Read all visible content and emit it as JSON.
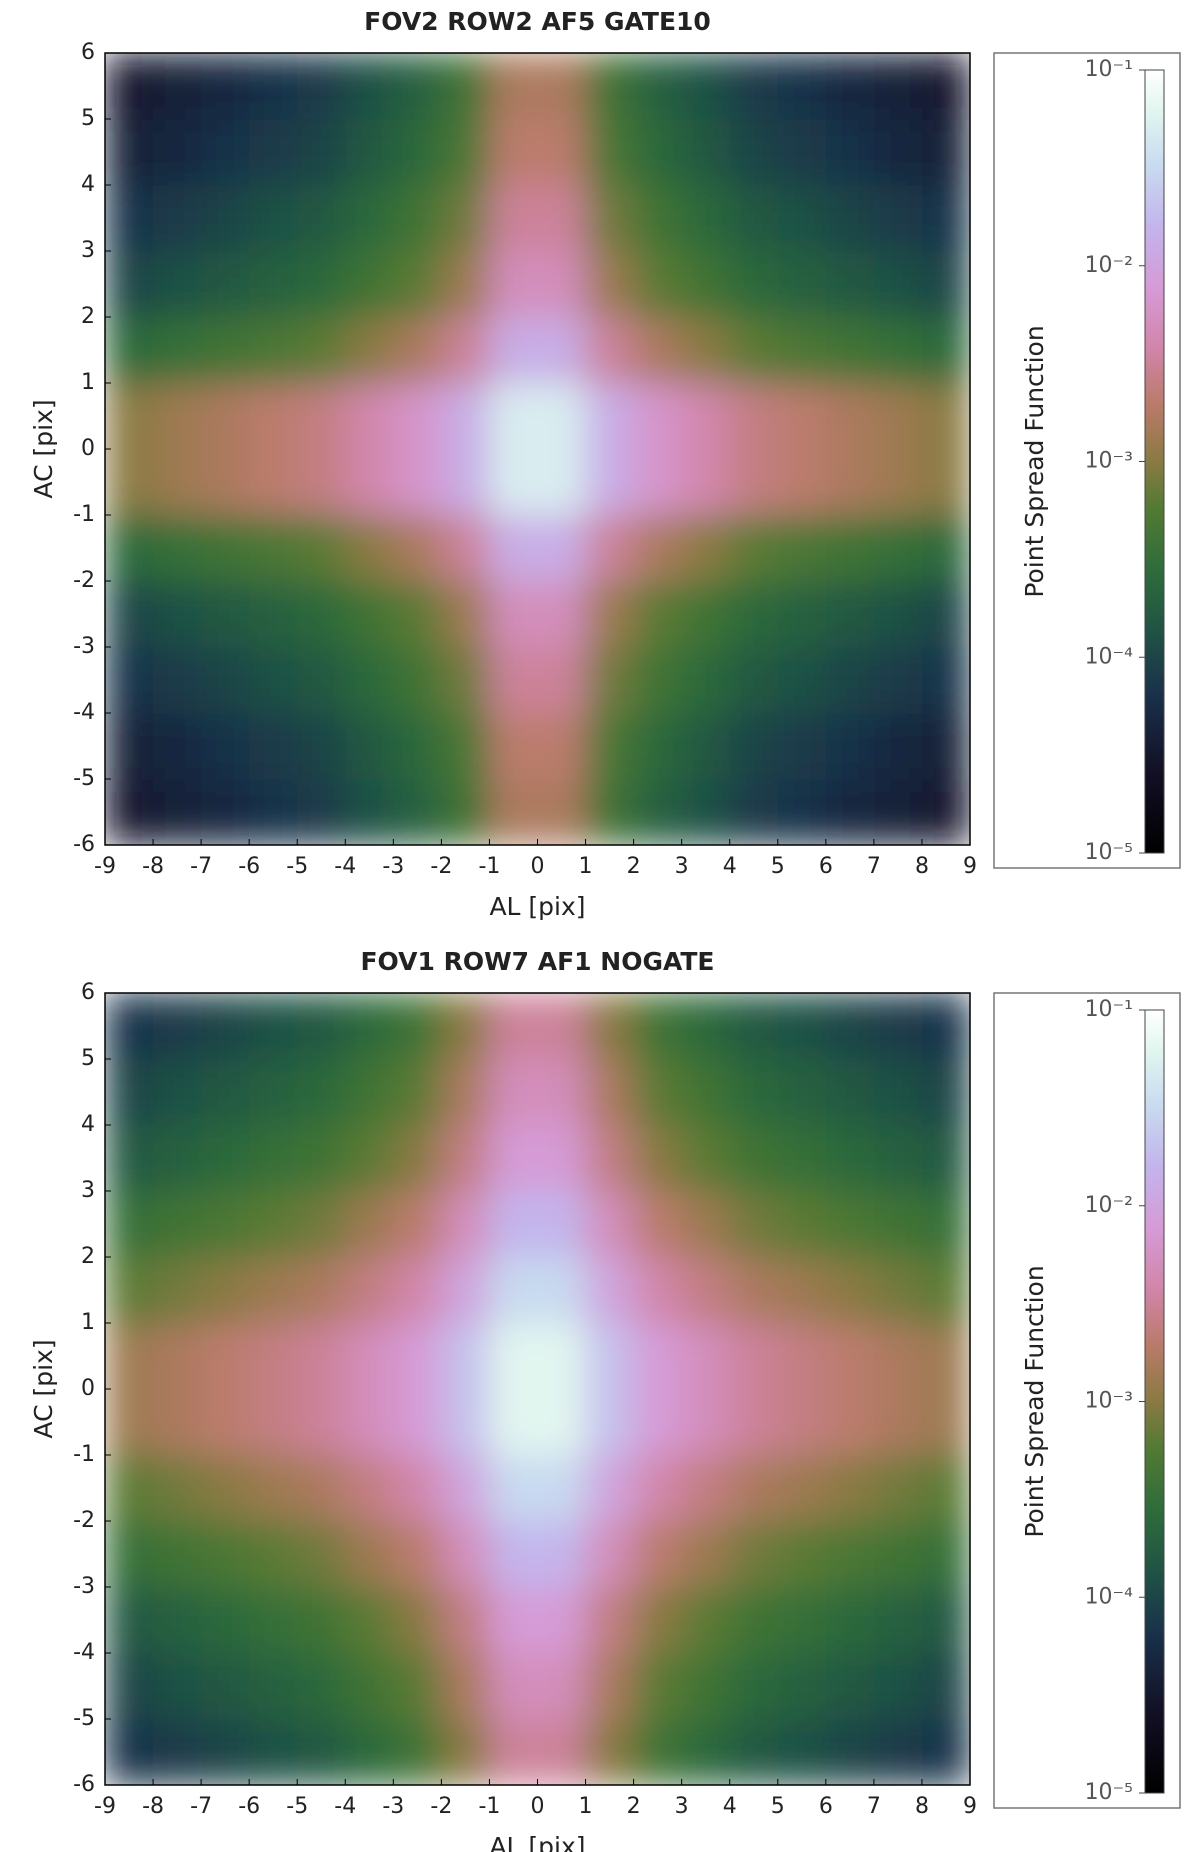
{
  "chart_data": [
    {
      "type": "heatmap",
      "title": "FOV2 ROW2 AF5 GATE10",
      "x_label": "AL [pix]",
      "y_label": "AC [pix]",
      "xlim": [
        -9,
        9
      ],
      "ylim": [
        -6,
        6
      ],
      "xticks": [
        -9,
        -8,
        -7,
        -6,
        -5,
        -4,
        -3,
        -2,
        -1,
        0,
        1,
        2,
        3,
        4,
        5,
        6,
        7,
        8,
        9
      ],
      "yticks": [
        -6,
        -5,
        -4,
        -3,
        -2,
        -1,
        0,
        1,
        2,
        3,
        4,
        5,
        6
      ],
      "x": [
        -8.5,
        -7.5,
        -6.5,
        -5.5,
        -4.5,
        -3.5,
        -2.5,
        -1.5,
        -0.5,
        0.5,
        1.5,
        2.5,
        3.5,
        4.5,
        5.5,
        6.5,
        7.5,
        8.5
      ],
      "y": [
        -5.5,
        -4.5,
        -3.5,
        -2.5,
        -1.5,
        -0.5,
        0.5,
        1.5,
        2.5,
        3.5,
        4.5,
        5.5
      ],
      "z": [
        [
          3.2e-05,
          4e-05,
          5e-05,
          6.3e-05,
          7.9e-05,
          0.00013,
          0.0002,
          0.0004,
          0.0016,
          0.0016,
          0.0004,
          0.0002,
          0.00013,
          7.9e-05,
          6.3e-05,
          5e-05,
          4e-05,
          3.2e-05
        ],
        [
          4e-05,
          5e-05,
          6.3e-05,
          7.9e-05,
          0.0001,
          0.00016,
          0.00025,
          0.0005,
          0.002,
          0.002,
          0.0005,
          0.00025,
          0.00016,
          0.0001,
          7.9e-05,
          6.3e-05,
          5e-05,
          4e-05
        ],
        [
          6.3e-05,
          7.9e-05,
          0.0001,
          0.00013,
          0.00016,
          0.00025,
          0.0004,
          0.00079,
          0.0032,
          0.0032,
          0.00079,
          0.0004,
          0.00025,
          0.00016,
          0.00013,
          0.0001,
          7.9e-05,
          6.3e-05
        ],
        [
          0.0001,
          0.00013,
          0.00016,
          0.0002,
          0.00025,
          0.0004,
          0.00063,
          0.0013,
          0.005,
          0.005,
          0.0013,
          0.00063,
          0.0004,
          0.00025,
          0.0002,
          0.00016,
          0.00013,
          0.0001
        ],
        [
          0.00025,
          0.00032,
          0.0004,
          0.0005,
          0.00063,
          0.001,
          0.0016,
          0.0032,
          0.013,
          0.013,
          0.0032,
          0.0016,
          0.001,
          0.00063,
          0.0005,
          0.0004,
          0.00032,
          0.00025
        ],
        [
          0.001,
          0.0013,
          0.0016,
          0.002,
          0.0025,
          0.004,
          0.0063,
          0.013,
          0.05,
          0.05,
          0.013,
          0.0063,
          0.004,
          0.0025,
          0.002,
          0.0016,
          0.0013,
          0.001
        ],
        [
          0.001,
          0.0013,
          0.0016,
          0.002,
          0.0025,
          0.004,
          0.0063,
          0.013,
          0.05,
          0.05,
          0.013,
          0.0063,
          0.004,
          0.0025,
          0.002,
          0.0016,
          0.0013,
          0.001
        ],
        [
          0.00025,
          0.00032,
          0.0004,
          0.0005,
          0.00063,
          0.001,
          0.0016,
          0.0032,
          0.013,
          0.013,
          0.0032,
          0.0016,
          0.001,
          0.00063,
          0.0005,
          0.0004,
          0.00032,
          0.00025
        ],
        [
          0.0001,
          0.00013,
          0.00016,
          0.0002,
          0.00025,
          0.0004,
          0.00063,
          0.0013,
          0.005,
          0.005,
          0.0013,
          0.00063,
          0.0004,
          0.00025,
          0.0002,
          0.00016,
          0.00013,
          0.0001
        ],
        [
          6.3e-05,
          7.9e-05,
          0.0001,
          0.00013,
          0.00016,
          0.00025,
          0.0004,
          0.00079,
          0.0032,
          0.0032,
          0.00079,
          0.0004,
          0.00025,
          0.00016,
          0.00013,
          0.0001,
          7.9e-05,
          6.3e-05
        ],
        [
          4e-05,
          5e-05,
          6.3e-05,
          7.9e-05,
          0.0001,
          0.00016,
          0.00025,
          0.0005,
          0.002,
          0.002,
          0.0005,
          0.00025,
          0.00016,
          0.0001,
          7.9e-05,
          6.3e-05,
          5e-05,
          4e-05
        ],
        [
          3.2e-05,
          4e-05,
          5e-05,
          6.3e-05,
          7.9e-05,
          0.00013,
          0.0002,
          0.0004,
          0.0016,
          0.0016,
          0.0004,
          0.0002,
          0.00013,
          7.9e-05,
          6.3e-05,
          5e-05,
          4e-05,
          3.2e-05
        ]
      ],
      "colorbar": {
        "label": "Point Spread Function",
        "scale": "log",
        "lim": [
          1e-05,
          0.1
        ],
        "ticks": [
          {
            "value": 1e-05,
            "label": "10⁻⁵"
          },
          {
            "value": 0.0001,
            "label": "10⁻⁴"
          },
          {
            "value": 0.001,
            "label": "10⁻³"
          },
          {
            "value": 0.01,
            "label": "10⁻²"
          },
          {
            "value": 0.1,
            "label": "10⁻¹"
          }
        ]
      }
    },
    {
      "type": "heatmap",
      "title": "FOV1 ROW7 AF1 NOGATE",
      "x_label": "AL [pix]",
      "y_label": "AC [pix]",
      "xlim": [
        -9,
        9
      ],
      "ylim": [
        -6,
        6
      ],
      "xticks": [
        -9,
        -8,
        -7,
        -6,
        -5,
        -4,
        -3,
        -2,
        -1,
        0,
        1,
        2,
        3,
        4,
        5,
        6,
        7,
        8,
        9
      ],
      "yticks": [
        -6,
        -5,
        -4,
        -3,
        -2,
        -1,
        0,
        1,
        2,
        3,
        4,
        5,
        6
      ],
      "x": [
        -8.5,
        -7.5,
        -6.5,
        -5.5,
        -4.5,
        -3.5,
        -2.5,
        -1.5,
        -0.5,
        0.5,
        1.5,
        2.5,
        3.5,
        4.5,
        5.5,
        6.5,
        7.5,
        8.5
      ],
      "y": [
        -5.5,
        -4.5,
        -3.5,
        -2.5,
        -1.5,
        -0.5,
        0.5,
        1.5,
        2.5,
        3.5,
        4.5,
        5.5
      ],
      "z": [
        [
          6.3e-05,
          7.9e-05,
          0.0001,
          0.00013,
          0.00016,
          0.00025,
          0.0004,
          0.001,
          0.0032,
          0.0032,
          0.001,
          0.0004,
          0.00025,
          0.00016,
          0.00013,
          0.0001,
          7.9e-05,
          6.3e-05
        ],
        [
          0.0001,
          0.00013,
          0.00016,
          0.0002,
          0.00025,
          0.0004,
          0.00063,
          0.0016,
          0.005,
          0.005,
          0.0016,
          0.00063,
          0.0004,
          0.00025,
          0.0002,
          0.00016,
          0.00013,
          0.0001
        ],
        [
          0.00016,
          0.0002,
          0.00025,
          0.00032,
          0.0004,
          0.00063,
          0.001,
          0.0025,
          0.0079,
          0.0079,
          0.0025,
          0.001,
          0.00063,
          0.0004,
          0.00032,
          0.00025,
          0.0002,
          0.00016
        ],
        [
          0.00032,
          0.0004,
          0.0005,
          0.00063,
          0.00079,
          0.0013,
          0.002,
          0.005,
          0.016,
          0.016,
          0.005,
          0.002,
          0.0013,
          0.00079,
          0.00063,
          0.0005,
          0.0004,
          0.00032
        ],
        [
          0.00063,
          0.00079,
          0.001,
          0.0013,
          0.0016,
          0.0025,
          0.004,
          0.01,
          0.032,
          0.032,
          0.01,
          0.004,
          0.0025,
          0.0016,
          0.0013,
          0.001,
          0.00079,
          0.00063
        ],
        [
          0.0013,
          0.0016,
          0.002,
          0.0025,
          0.0032,
          0.005,
          0.0079,
          0.02,
          0.063,
          0.063,
          0.02,
          0.0079,
          0.005,
          0.0032,
          0.0025,
          0.002,
          0.0016,
          0.0013
        ],
        [
          0.0013,
          0.0016,
          0.002,
          0.0025,
          0.0032,
          0.005,
          0.0079,
          0.02,
          0.063,
          0.063,
          0.02,
          0.0079,
          0.005,
          0.0032,
          0.0025,
          0.002,
          0.0016,
          0.0013
        ],
        [
          0.00063,
          0.00079,
          0.001,
          0.0013,
          0.0016,
          0.0025,
          0.004,
          0.01,
          0.032,
          0.032,
          0.01,
          0.004,
          0.0025,
          0.0016,
          0.0013,
          0.001,
          0.00079,
          0.00063
        ],
        [
          0.00032,
          0.0004,
          0.0005,
          0.00063,
          0.00079,
          0.0013,
          0.002,
          0.005,
          0.016,
          0.016,
          0.005,
          0.002,
          0.0013,
          0.00079,
          0.00063,
          0.0005,
          0.0004,
          0.00032
        ],
        [
          0.00016,
          0.0002,
          0.00025,
          0.00032,
          0.0004,
          0.00063,
          0.001,
          0.0025,
          0.0079,
          0.0079,
          0.0025,
          0.001,
          0.00063,
          0.0004,
          0.00032,
          0.00025,
          0.0002,
          0.00016
        ],
        [
          0.0001,
          0.00013,
          0.00016,
          0.0002,
          0.00025,
          0.0004,
          0.00063,
          0.0016,
          0.005,
          0.005,
          0.0016,
          0.00063,
          0.0004,
          0.00025,
          0.0002,
          0.00016,
          0.00013,
          0.0001
        ],
        [
          6.3e-05,
          7.9e-05,
          0.0001,
          0.00013,
          0.00016,
          0.00025,
          0.0004,
          0.001,
          0.0032,
          0.0032,
          0.001,
          0.0004,
          0.00025,
          0.00016,
          0.00013,
          0.0001,
          7.9e-05,
          6.3e-05
        ]
      ],
      "colorbar": {
        "label": "Point Spread Function",
        "scale": "log",
        "lim": [
          1e-05,
          0.1
        ],
        "ticks": [
          {
            "value": 1e-05,
            "label": "10⁻⁵"
          },
          {
            "value": 0.0001,
            "label": "10⁻⁴"
          },
          {
            "value": 0.001,
            "label": "10⁻³"
          },
          {
            "value": 0.01,
            "label": "10⁻²"
          },
          {
            "value": 0.1,
            "label": "10⁻¹"
          }
        ]
      }
    }
  ]
}
